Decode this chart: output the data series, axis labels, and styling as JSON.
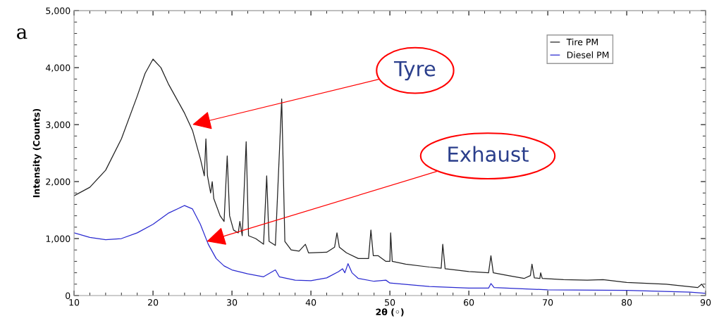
{
  "chart_data": {
    "type": "line",
    "xlabel": "2θ (◦)",
    "ylabel": "Intensity (Counts)",
    "xlim": [
      10,
      90
    ],
    "xticks": [
      10,
      20,
      30,
      40,
      50,
      60,
      70,
      80,
      90
    ],
    "ylim": [
      0,
      5000
    ],
    "yticks": [
      0,
      {
        "value": 1000,
        "label": "1,000"
      },
      {
        "value": 2000,
        "label": "2,000"
      },
      {
        "value": 3000,
        "label": "3,000"
      },
      {
        "value": 4000,
        "label": "4,000"
      },
      {
        "value": 5000,
        "label": "5,000"
      }
    ],
    "grid": false,
    "legend": "top right",
    "marker": "none",
    "line_style": "solid",
    "series": [
      {
        "name": "Tire PM",
        "color": "#222222",
        "x": [
          10,
          12,
          14,
          16,
          18,
          19,
          20,
          21,
          22,
          23,
          24,
          25,
          26,
          26.5,
          26.7,
          26.9,
          27.3,
          27.5,
          27.7,
          28.5,
          29,
          29.4,
          29.7,
          30.2,
          30.8,
          31,
          31.3,
          31.8,
          32.1,
          33,
          34,
          34.4,
          34.7,
          35.5,
          36.3,
          36.7,
          37.5,
          38.5,
          39.3,
          39.7,
          42,
          43,
          43.3,
          43.6,
          44.5,
          46,
          47.3,
          47.6,
          47.9,
          48.5,
          49.5,
          50,
          50.1,
          50.3,
          52,
          55,
          56.5,
          56.7,
          57,
          60,
          62.5,
          62.8,
          63.1,
          65,
          67,
          67.8,
          68,
          68.3,
          69,
          69.1,
          69.3,
          72,
          75,
          77,
          80,
          85,
          89,
          89.5,
          89.8
        ],
        "values": [
          1750,
          1900,
          2200,
          2750,
          3500,
          3900,
          4150,
          4000,
          3700,
          3450,
          3200,
          2900,
          2400,
          2100,
          2750,
          2100,
          1800,
          2000,
          1700,
          1400,
          1300,
          2450,
          1400,
          1150,
          1100,
          1300,
          1050,
          2700,
          1050,
          1000,
          900,
          2100,
          950,
          880,
          3450,
          950,
          800,
          780,
          900,
          750,
          760,
          850,
          1100,
          850,
          750,
          650,
          650,
          1150,
          700,
          700,
          600,
          600,
          1100,
          600,
          550,
          500,
          480,
          900,
          470,
          420,
          400,
          700,
          400,
          350,
          300,
          350,
          550,
          310,
          300,
          400,
          300,
          280,
          270,
          280,
          230,
          200,
          140,
          200,
          140
        ]
      },
      {
        "name": "Diesel PM",
        "color": "#2a2ad0",
        "x": [
          10,
          12,
          14,
          16,
          18,
          20,
          22,
          24,
          25,
          26,
          27,
          28,
          29,
          30,
          32,
          34,
          35.5,
          36,
          38,
          40,
          42,
          43.5,
          44,
          44.3,
          44.7,
          45.2,
          46,
          48,
          49.5,
          50,
          55,
          60,
          62.5,
          62.8,
          63.2,
          70,
          80,
          88,
          90
        ],
        "values": [
          1100,
          1020,
          980,
          1000,
          1100,
          1250,
          1450,
          1580,
          1520,
          1250,
          900,
          650,
          520,
          450,
          380,
          330,
          450,
          330,
          270,
          260,
          310,
          420,
          470,
          400,
          560,
          400,
          300,
          250,
          270,
          220,
          160,
          130,
          130,
          210,
          140,
          100,
          90,
          60,
          40
        ]
      }
    ],
    "annotations": [
      "a",
      {
        "text": "Tyre",
        "x": 25,
        "y": 3000
      },
      {
        "text": "Exhaust",
        "x": 26.8,
        "y": 950
      }
    ]
  }
}
